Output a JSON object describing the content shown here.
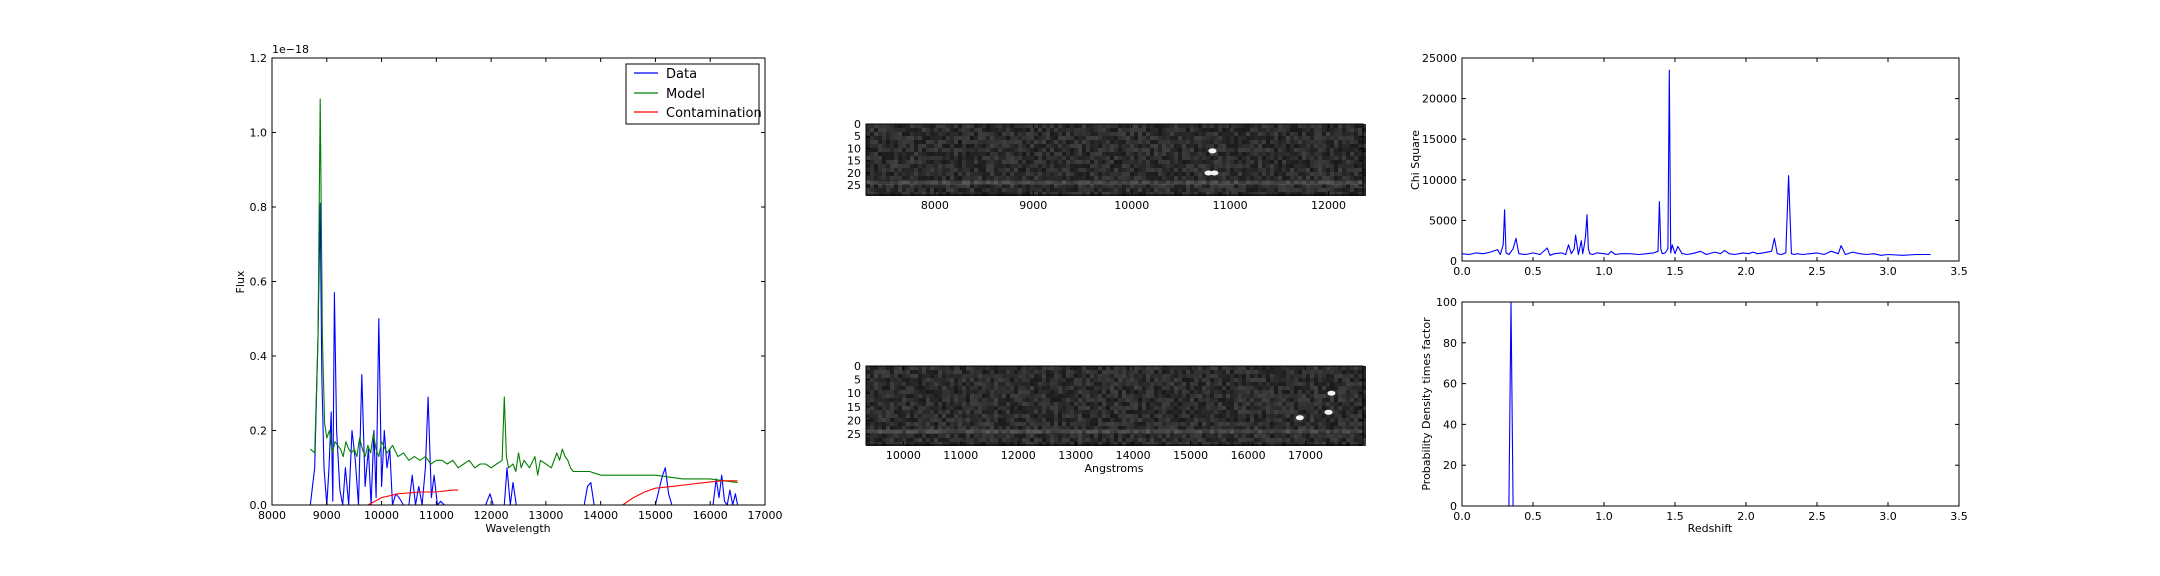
{
  "chart_data": [
    {
      "id": "spectrum",
      "type": "line",
      "xlabel": "Wavelength",
      "ylabel": "Flux",
      "offset_text": "1e−18",
      "xlim": [
        8000,
        17000
      ],
      "ylim": [
        0,
        1.2
      ],
      "xticks": [
        "8000",
        "9000",
        "10000",
        "11000",
        "12000",
        "13000",
        "14000",
        "15000",
        "16000",
        "17000"
      ],
      "yticks": [
        "0.0",
        "0.2",
        "0.4",
        "0.6",
        "0.8",
        "1.0",
        "1.2"
      ],
      "legend": {
        "position": "top-right",
        "entries": [
          "Data",
          "Model",
          "Contamination"
        ]
      },
      "series": [
        {
          "name": "Data",
          "color": "#0000ff",
          "x": [
            8700,
            8780,
            8840,
            8880,
            8910,
            8950,
            9000,
            9040,
            9080,
            9110,
            9140,
            9180,
            9240,
            9290,
            9340,
            9400,
            9460,
            9520,
            9580,
            9640,
            9700,
            9760,
            9810,
            9860,
            9900,
            9950,
            10000,
            10050,
            10100,
            10150,
            10200,
            10260,
            10320,
            10400,
            10500,
            10560,
            10620,
            10680,
            10740,
            10800,
            10850,
            10910,
            10960,
            11020,
            11080,
            11150,
            11250,
            11350,
            11450,
            11600,
            11750,
            11900,
            11980,
            12040,
            12080,
            12130,
            12180,
            12240,
            12290,
            12350,
            12400,
            12460,
            12520,
            12580,
            12650,
            12800,
            13000,
            13200,
            13400,
            13600,
            13700,
            13760,
            13820,
            13880,
            13950,
            14100,
            14400,
            14700,
            15000,
            15080,
            15130,
            15180,
            15240,
            15300,
            15400,
            15600,
            15800,
            15950,
            16050,
            16110,
            16160,
            16210,
            16260,
            16310,
            16360,
            16410,
            16460,
            16500
          ],
          "y": [
            0.0,
            0.1,
            0.45,
            0.81,
            0.35,
            0.1,
            0.0,
            0.1,
            0.25,
            0.01,
            0.57,
            0.2,
            0.04,
            0.0,
            0.1,
            0.0,
            0.2,
            0.12,
            0.0,
            0.35,
            0.05,
            0.15,
            0.0,
            0.2,
            0.02,
            0.5,
            0.05,
            0.2,
            0.1,
            0.15,
            0.0,
            0.03,
            0.02,
            0.0,
            0.0,
            0.08,
            0.0,
            0.05,
            0.0,
            0.1,
            0.29,
            0.02,
            0.08,
            0.0,
            0.01,
            0.0,
            0.0,
            0.0,
            0.0,
            0.0,
            0.0,
            0.0,
            0.03,
            0.0,
            0.0,
            0.0,
            0.0,
            0.0,
            0.1,
            0.0,
            0.06,
            0.0,
            0.0,
            0.0,
            0.0,
            0.0,
            0.0,
            0.0,
            0.0,
            0.0,
            0.0,
            0.05,
            0.06,
            0.0,
            0.0,
            0.0,
            0.0,
            0.0,
            0.0,
            0.05,
            0.08,
            0.1,
            0.03,
            0.0,
            0.0,
            0.0,
            0.0,
            0.0,
            0.0,
            0.07,
            0.02,
            0.08,
            0.01,
            0.0,
            0.04,
            0.0,
            0.03,
            0.0
          ]
        },
        {
          "name": "Model",
          "color": "#008000",
          "x": [
            8700,
            8780,
            8840,
            8880,
            8920,
            8960,
            9000,
            9050,
            9100,
            9150,
            9200,
            9250,
            9300,
            9350,
            9400,
            9450,
            9500,
            9550,
            9600,
            9650,
            9700,
            9750,
            9800,
            9850,
            9900,
            9950,
            10000,
            10100,
            10200,
            10300,
            10400,
            10500,
            10600,
            10700,
            10800,
            10900,
            11000,
            11100,
            11200,
            11300,
            11400,
            11500,
            11600,
            11700,
            11800,
            11900,
            12000,
            12100,
            12200,
            12240,
            12280,
            12320,
            12400,
            12450,
            12500,
            12550,
            12600,
            12700,
            12800,
            12850,
            12900,
            13000,
            13100,
            13200,
            13250,
            13300,
            13350,
            13400,
            13450,
            13500,
            13600,
            13800,
            14000,
            14500,
            15000,
            15500,
            16000,
            16500
          ],
          "y": [
            0.15,
            0.14,
            0.45,
            1.09,
            0.45,
            0.22,
            0.18,
            0.2,
            0.14,
            0.17,
            0.16,
            0.15,
            0.13,
            0.17,
            0.15,
            0.14,
            0.15,
            0.13,
            0.18,
            0.15,
            0.13,
            0.16,
            0.14,
            0.19,
            0.15,
            0.13,
            0.17,
            0.14,
            0.16,
            0.13,
            0.14,
            0.12,
            0.13,
            0.12,
            0.13,
            0.11,
            0.12,
            0.12,
            0.11,
            0.12,
            0.1,
            0.11,
            0.12,
            0.1,
            0.11,
            0.11,
            0.1,
            0.11,
            0.12,
            0.29,
            0.13,
            0.1,
            0.11,
            0.09,
            0.14,
            0.1,
            0.12,
            0.1,
            0.13,
            0.08,
            0.12,
            0.11,
            0.1,
            0.14,
            0.12,
            0.15,
            0.13,
            0.12,
            0.1,
            0.09,
            0.09,
            0.09,
            0.08,
            0.08,
            0.08,
            0.07,
            0.07,
            0.06
          ]
        },
        {
          "name": "Contamination",
          "color": "#ff0000",
          "segments": [
            {
              "x": [
                9750,
                10000,
                10300,
                10700,
                11000,
                11300,
                11400
              ],
              "y": [
                0.0,
                0.02,
                0.03,
                0.035,
                0.035,
                0.04,
                0.04
              ]
            },
            {
              "x": [
                14400,
                14600,
                14800,
                15000,
                15300,
                15600,
                15900,
                16200,
                16500
              ],
              "y": [
                0.0,
                0.02,
                0.035,
                0.045,
                0.05,
                0.055,
                0.06,
                0.065,
                0.065
              ]
            }
          ]
        }
      ]
    },
    {
      "id": "image_top",
      "type": "heatmap",
      "xlim": [
        7300,
        12350
      ],
      "ylim": [
        0,
        29
      ],
      "xticks": [
        "8000",
        "9000",
        "10000",
        "11000",
        "12000"
      ],
      "yticks": [
        "0",
        "5",
        "10",
        "15",
        "20",
        "25"
      ],
      "bright_spots": [
        {
          "x": 10820,
          "y": 11
        },
        {
          "x": 10780,
          "y": 20
        },
        {
          "x": 10840,
          "y": 20
        }
      ]
    },
    {
      "id": "image_bottom",
      "type": "heatmap",
      "xlabel": "Angstroms",
      "xlim": [
        9350,
        18000
      ],
      "ylim": [
        0,
        29
      ],
      "xticks": [
        "10000",
        "11000",
        "12000",
        "13000",
        "14000",
        "15000",
        "16000",
        "17000"
      ],
      "yticks": [
        "0",
        "5",
        "10",
        "15",
        "20",
        "25"
      ],
      "bright_spots": [
        {
          "x": 17450,
          "y": 10
        },
        {
          "x": 17400,
          "y": 17
        },
        {
          "x": 16900,
          "y": 19
        }
      ]
    },
    {
      "id": "chi_square",
      "type": "line",
      "ylabel": "Chi Square",
      "xlim": [
        0,
        3.5
      ],
      "ylim": [
        0,
        25000
      ],
      "xticks": [
        "0.0",
        "0.5",
        "1.0",
        "1.5",
        "2.0",
        "2.5",
        "3.0",
        "3.5"
      ],
      "yticks": [
        "0",
        "5000",
        "10000",
        "15000",
        "20000",
        "25000"
      ],
      "series": [
        {
          "color": "#0000ff",
          "x": [
            0.0,
            0.05,
            0.1,
            0.15,
            0.2,
            0.25,
            0.27,
            0.29,
            0.3,
            0.31,
            0.33,
            0.36,
            0.38,
            0.4,
            0.45,
            0.5,
            0.55,
            0.6,
            0.62,
            0.65,
            0.7,
            0.73,
            0.75,
            0.77,
            0.79,
            0.8,
            0.82,
            0.84,
            0.85,
            0.86,
            0.87,
            0.88,
            0.89,
            0.9,
            0.92,
            0.95,
            1.0,
            1.03,
            1.05,
            1.08,
            1.12,
            1.18,
            1.25,
            1.3,
            1.35,
            1.38,
            1.39,
            1.4,
            1.41,
            1.43,
            1.45,
            1.46,
            1.47,
            1.48,
            1.5,
            1.52,
            1.55,
            1.56,
            1.58,
            1.62,
            1.68,
            1.72,
            1.78,
            1.82,
            1.85,
            1.88,
            1.92,
            1.98,
            2.02,
            2.05,
            2.08,
            2.12,
            2.15,
            2.18,
            2.2,
            2.22,
            2.25,
            2.28,
            2.3,
            2.32,
            2.34,
            2.36,
            2.4,
            2.45,
            2.5,
            2.55,
            2.6,
            2.65,
            2.67,
            2.7,
            2.75,
            2.8,
            2.85,
            2.9,
            2.95,
            3.0,
            3.1,
            3.2,
            3.3
          ],
          "y": [
            900,
            800,
            1000,
            900,
            1100,
            1400,
            800,
            2000,
            6300,
            1000,
            800,
            1500,
            2800,
            900,
            800,
            1000,
            800,
            1600,
            700,
            900,
            1000,
            800,
            2000,
            900,
            1500,
            3200,
            800,
            2500,
            900,
            1800,
            3000,
            5700,
            1500,
            900,
            800,
            1000,
            900,
            800,
            1200,
            800,
            900,
            900,
            800,
            900,
            1000,
            1200,
            7300,
            1500,
            900,
            1000,
            1500,
            23500,
            1000,
            2000,
            900,
            1800,
            900,
            900,
            800,
            900,
            1200,
            800,
            1100,
            900,
            1300,
            900,
            800,
            1000,
            900,
            1100,
            900,
            1000,
            1100,
            1200,
            2800,
            900,
            800,
            1000,
            10500,
            900,
            800,
            900,
            800,
            900,
            1000,
            800,
            1200,
            900,
            1900,
            800,
            1100,
            900,
            800,
            900,
            700,
            800,
            700,
            800,
            800
          ]
        }
      ]
    },
    {
      "id": "probability",
      "type": "line",
      "xlabel": "Redshift",
      "ylabel": "Probability Density times factor",
      "xlim": [
        0,
        3.5
      ],
      "ylim": [
        0,
        100
      ],
      "xticks": [
        "0.0",
        "0.5",
        "1.0",
        "1.5",
        "2.0",
        "2.5",
        "3.0",
        "3.5"
      ],
      "yticks": [
        "0",
        "20",
        "40",
        "60",
        "80",
        "100"
      ],
      "series": [
        {
          "color": "#0000ff",
          "x": [
            0.0,
            0.3,
            0.33,
            0.345,
            0.36,
            0.4,
            1.0,
            2.0,
            3.3
          ],
          "y": [
            0,
            0,
            0,
            100,
            0,
            0,
            0,
            0,
            0
          ]
        }
      ]
    }
  ]
}
